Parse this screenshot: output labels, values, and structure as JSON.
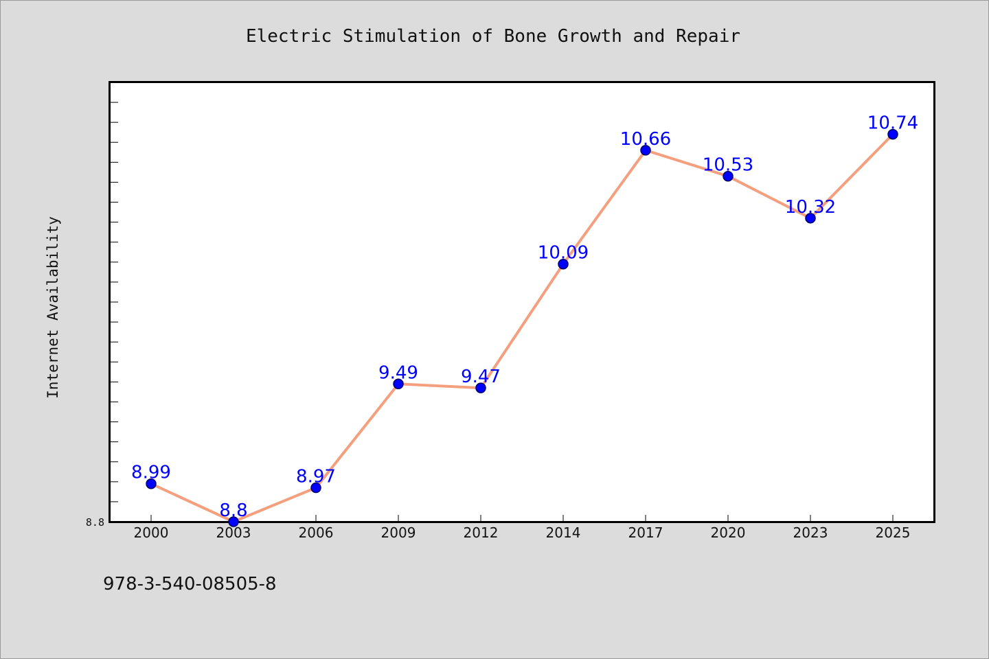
{
  "chart_data": {
    "type": "line",
    "title": "Electric Stimulation of Bone Growth and Repair",
    "xlabel": "",
    "ylabel": "Internet Availability",
    "categories": [
      "2000",
      "2003",
      "2006",
      "2009",
      "2012",
      "2014",
      "2017",
      "2020",
      "2023",
      "2025"
    ],
    "values": [
      8.99,
      8.8,
      8.97,
      9.49,
      9.47,
      10.09,
      10.66,
      10.53,
      10.32,
      10.74
    ],
    "data_labels": [
      "8.99",
      "8.8",
      "8.97",
      "9.49",
      "9.47",
      "10.09",
      "10.66",
      "10.53",
      "10.32",
      "10.74"
    ],
    "y_tick_label": "8.8",
    "ylim": [
      8.8,
      11.0
    ],
    "grid": false,
    "legend": "none",
    "colors": {
      "line": "#f4a07e",
      "marker": "#0000ff",
      "marker_edge": "#000066",
      "data_label": "#0000ff",
      "plot_background": "#ffffff",
      "figure_background": "#dcdcdc"
    }
  },
  "footer": {
    "isbn": "978-3-540-08505-8"
  }
}
